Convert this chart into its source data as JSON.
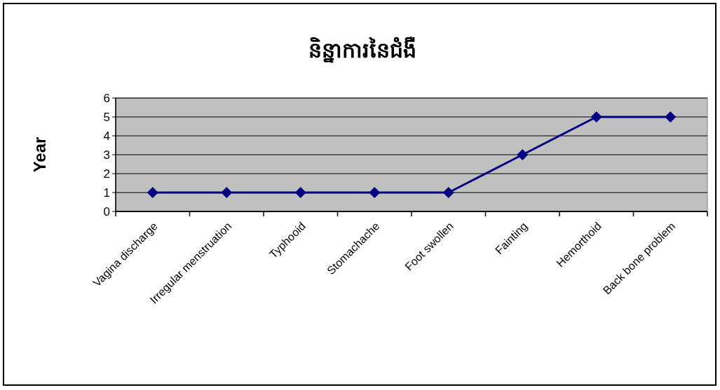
{
  "chart_data": {
    "type": "line",
    "title": "និន្នាការនៃជំងឺ",
    "ylabel": "Year",
    "categories": [
      "Vagina discharge",
      "Irregular menstruation",
      "Typhooid",
      "Stomachache",
      "Foot swollen",
      "Fainting",
      "Hemorthoid",
      "Back bone problem"
    ],
    "series": [
      {
        "color": "#000080",
        "values": [
          1,
          1,
          1,
          1,
          1,
          3,
          5,
          5
        ]
      }
    ],
    "ylim": [
      0,
      6
    ],
    "yticks": [
      0,
      1,
      2,
      3,
      4,
      5,
      6
    ],
    "grid": "y",
    "marker": "diamond",
    "line_style": "solid"
  }
}
